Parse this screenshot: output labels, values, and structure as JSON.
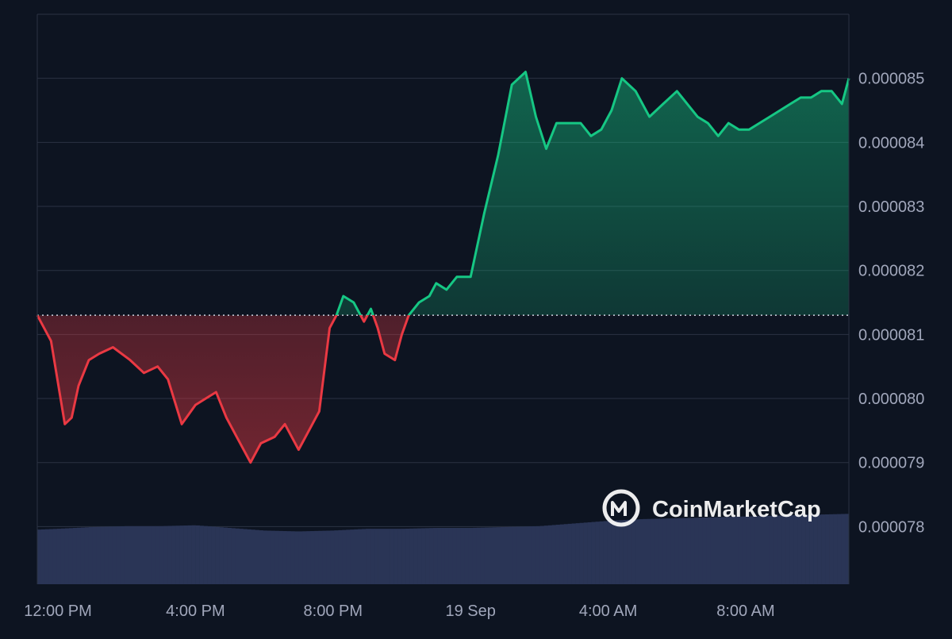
{
  "chart_data": {
    "type": "area",
    "title": "",
    "xlabel": "",
    "ylabel": "",
    "baseline_value": 8.13e-05,
    "ylim": [
      7.71e-05,
      8.6e-05
    ],
    "y_ticks": [
      {
        "value": 8.5e-05,
        "label": "0.000085"
      },
      {
        "value": 8.4e-05,
        "label": "0.000084"
      },
      {
        "value": 8.3e-05,
        "label": "0.000083"
      },
      {
        "value": 8.2e-05,
        "label": "0.000082"
      },
      {
        "value": 8.1e-05,
        "label": "0.000081"
      },
      {
        "value": 8e-05,
        "label": "0.000080"
      },
      {
        "value": 7.9e-05,
        "label": "0.000079"
      },
      {
        "value": 7.8e-05,
        "label": "0.000078"
      }
    ],
    "x_range_hours": [
      11.4,
      35.0
    ],
    "x_ticks": [
      {
        "hour": 12,
        "label": "12:00 PM"
      },
      {
        "hour": 16,
        "label": "4:00 PM"
      },
      {
        "hour": 20,
        "label": "8:00 PM"
      },
      {
        "hour": 24,
        "label": "19 Sep"
      },
      {
        "hour": 28,
        "label": "4:00 AM"
      },
      {
        "hour": 32,
        "label": "8:00 AM"
      }
    ],
    "colors": {
      "up_line": "#16c784",
      "down_line": "#ea3943",
      "volume": "#2a3556",
      "background": "#0d1421"
    },
    "series": [
      {
        "values_hours": [
          11.4,
          11.8,
          12.2,
          12.4,
          12.6,
          12.9,
          13.2,
          13.6,
          14.1,
          14.5,
          14.9,
          15.2,
          15.6,
          16.0,
          16.3,
          16.6,
          16.9,
          17.2,
          17.6,
          17.9,
          18.3,
          18.6,
          19.0,
          19.3,
          19.6,
          19.9,
          20.1,
          20.3,
          20.6,
          20.9,
          21.1,
          21.3,
          21.5,
          21.8,
          22.0,
          22.2,
          22.5,
          22.8,
          23.0,
          23.3,
          23.6,
          24.0,
          24.4,
          24.8,
          25.2,
          25.6,
          25.9,
          26.2,
          26.5,
          26.8,
          27.0,
          27.2,
          27.5,
          27.8,
          28.1,
          28.4,
          28.8,
          29.2,
          29.6,
          30.0,
          30.3,
          30.6,
          30.9,
          31.2,
          31.5,
          31.8,
          32.1,
          32.4,
          32.7,
          33.0,
          33.3,
          33.6,
          33.9,
          34.2,
          34.5,
          34.8,
          35.0
        ],
        "values": [
          8.13e-05,
          8.09e-05,
          7.96e-05,
          7.97e-05,
          8.02e-05,
          8.06e-05,
          8.07e-05,
          8.08e-05,
          8.06e-05,
          8.04e-05,
          8.05e-05,
          8.03e-05,
          7.96e-05,
          7.99e-05,
          8e-05,
          8.01e-05,
          7.97e-05,
          7.94e-05,
          7.9e-05,
          7.93e-05,
          7.94e-05,
          7.96e-05,
          7.92e-05,
          7.95e-05,
          7.98e-05,
          8.11e-05,
          8.13e-05,
          8.16e-05,
          8.15e-05,
          8.12e-05,
          8.14e-05,
          8.11e-05,
          8.07e-05,
          8.06e-05,
          8.1e-05,
          8.13e-05,
          8.15e-05,
          8.16e-05,
          8.18e-05,
          8.17e-05,
          8.19e-05,
          8.19e-05,
          8.29e-05,
          8.38e-05,
          8.49e-05,
          8.51e-05,
          8.44e-05,
          8.39e-05,
          8.43e-05,
          8.43e-05,
          8.43e-05,
          8.43e-05,
          8.41e-05,
          8.42e-05,
          8.45e-05,
          8.5e-05,
          8.48e-05,
          8.44e-05,
          8.46e-05,
          8.48e-05,
          8.46e-05,
          8.44e-05,
          8.43e-05,
          8.41e-05,
          8.43e-05,
          8.42e-05,
          8.42e-05,
          8.43e-05,
          8.44e-05,
          8.45e-05,
          8.46e-05,
          8.47e-05,
          8.47e-05,
          8.48e-05,
          8.48e-05,
          8.46e-05,
          8.5e-05
        ]
      }
    ],
    "volume_hours": [
      11.4,
      12.0,
      13.0,
      14.0,
      15.0,
      16.0,
      17.0,
      18.0,
      19.0,
      20.0,
      21.0,
      22.0,
      23.0,
      24.0,
      25.0,
      26.0,
      27.0,
      28.0,
      29.0,
      30.0,
      31.0,
      32.0,
      33.0,
      34.0,
      35.0
    ],
    "volume_levels": [
      0.62,
      0.63,
      0.65,
      0.66,
      0.66,
      0.67,
      0.64,
      0.61,
      0.6,
      0.61,
      0.63,
      0.63,
      0.64,
      0.64,
      0.65,
      0.66,
      0.69,
      0.72,
      0.74,
      0.75,
      0.76,
      0.77,
      0.78,
      0.79,
      0.8
    ]
  },
  "watermark": {
    "text": "CoinMarketCap",
    "icon": "coinmarketcap-logo-icon"
  }
}
